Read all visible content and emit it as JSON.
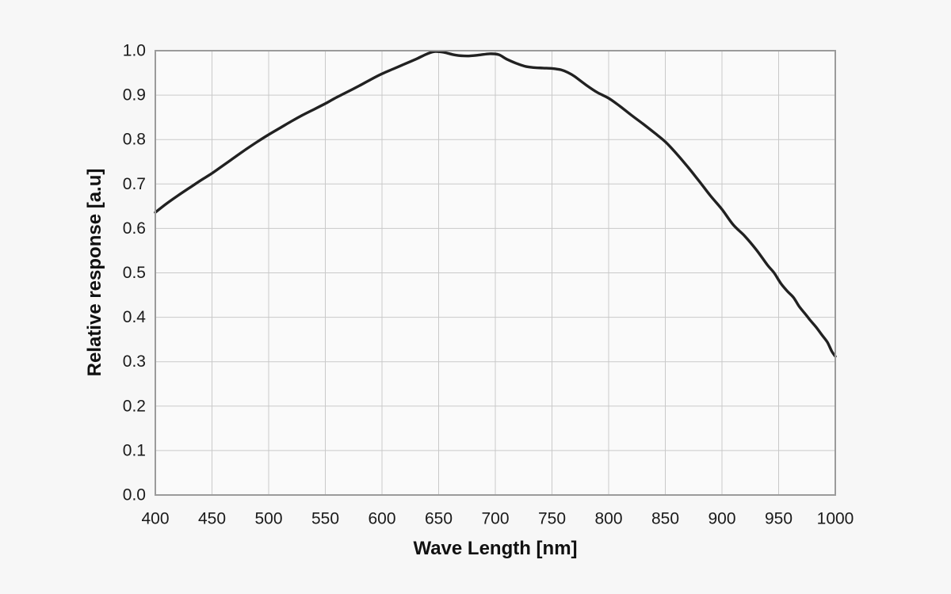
{
  "colors": {
    "background": "#f7f7f7",
    "plot_background": "#fafafa",
    "frame": "#9b9b9b",
    "grid": "#c9c9c9",
    "line": "#212121",
    "tick_text": "#1a1a1a",
    "label_text": "#111111"
  },
  "chart_data": {
    "type": "line",
    "title": "",
    "xlabel": "Wave Length [nm]",
    "ylabel": "Relative response [a.u]",
    "xlim": [
      400,
      1000
    ],
    "ylim": [
      0.0,
      1.0
    ],
    "x_ticks": [
      400,
      450,
      500,
      550,
      600,
      650,
      700,
      750,
      800,
      850,
      900,
      950,
      1000
    ],
    "y_ticks": [
      "0.0",
      "0.1",
      "0.2",
      "0.3",
      "0.4",
      "0.5",
      "0.6",
      "0.7",
      "0.8",
      "0.9",
      "1.0"
    ],
    "grid": true,
    "legend_position": "none",
    "series": [
      {
        "name": "Relative response",
        "points": [
          [
            400,
            0.636
          ],
          [
            410,
            0.656
          ],
          [
            420,
            0.674
          ],
          [
            430,
            0.691
          ],
          [
            440,
            0.708
          ],
          [
            450,
            0.724
          ],
          [
            460,
            0.742
          ],
          [
            470,
            0.76
          ],
          [
            480,
            0.778
          ],
          [
            490,
            0.795
          ],
          [
            500,
            0.811
          ],
          [
            510,
            0.826
          ],
          [
            520,
            0.841
          ],
          [
            530,
            0.855
          ],
          [
            540,
            0.868
          ],
          [
            550,
            0.881
          ],
          [
            560,
            0.895
          ],
          [
            570,
            0.908
          ],
          [
            580,
            0.921
          ],
          [
            590,
            0.935
          ],
          [
            600,
            0.948
          ],
          [
            610,
            0.959
          ],
          [
            620,
            0.97
          ],
          [
            630,
            0.981
          ],
          [
            640,
            0.993
          ],
          [
            647,
            0.998
          ],
          [
            655,
            0.996
          ],
          [
            665,
            0.99
          ],
          [
            675,
            0.988
          ],
          [
            685,
            0.99
          ],
          [
            695,
            0.993
          ],
          [
            703,
            0.991
          ],
          [
            710,
            0.981
          ],
          [
            718,
            0.972
          ],
          [
            726,
            0.965
          ],
          [
            734,
            0.962
          ],
          [
            742,
            0.961
          ],
          [
            750,
            0.96
          ],
          [
            758,
            0.957
          ],
          [
            764,
            0.951
          ],
          [
            770,
            0.942
          ],
          [
            780,
            0.923
          ],
          [
            790,
            0.906
          ],
          [
            800,
            0.893
          ],
          [
            810,
            0.875
          ],
          [
            820,
            0.855
          ],
          [
            830,
            0.836
          ],
          [
            840,
            0.816
          ],
          [
            850,
            0.795
          ],
          [
            860,
            0.768
          ],
          [
            870,
            0.738
          ],
          [
            880,
            0.706
          ],
          [
            890,
            0.673
          ],
          [
            900,
            0.643
          ],
          [
            910,
            0.608
          ],
          [
            920,
            0.583
          ],
          [
            930,
            0.553
          ],
          [
            940,
            0.518
          ],
          [
            946,
            0.5
          ],
          [
            952,
            0.476
          ],
          [
            958,
            0.458
          ],
          [
            963,
            0.445
          ],
          [
            968,
            0.425
          ],
          [
            973,
            0.409
          ],
          [
            978,
            0.393
          ],
          [
            983,
            0.378
          ],
          [
            988,
            0.361
          ],
          [
            993,
            0.344
          ],
          [
            997,
            0.323
          ],
          [
            1000,
            0.312
          ]
        ]
      }
    ]
  }
}
